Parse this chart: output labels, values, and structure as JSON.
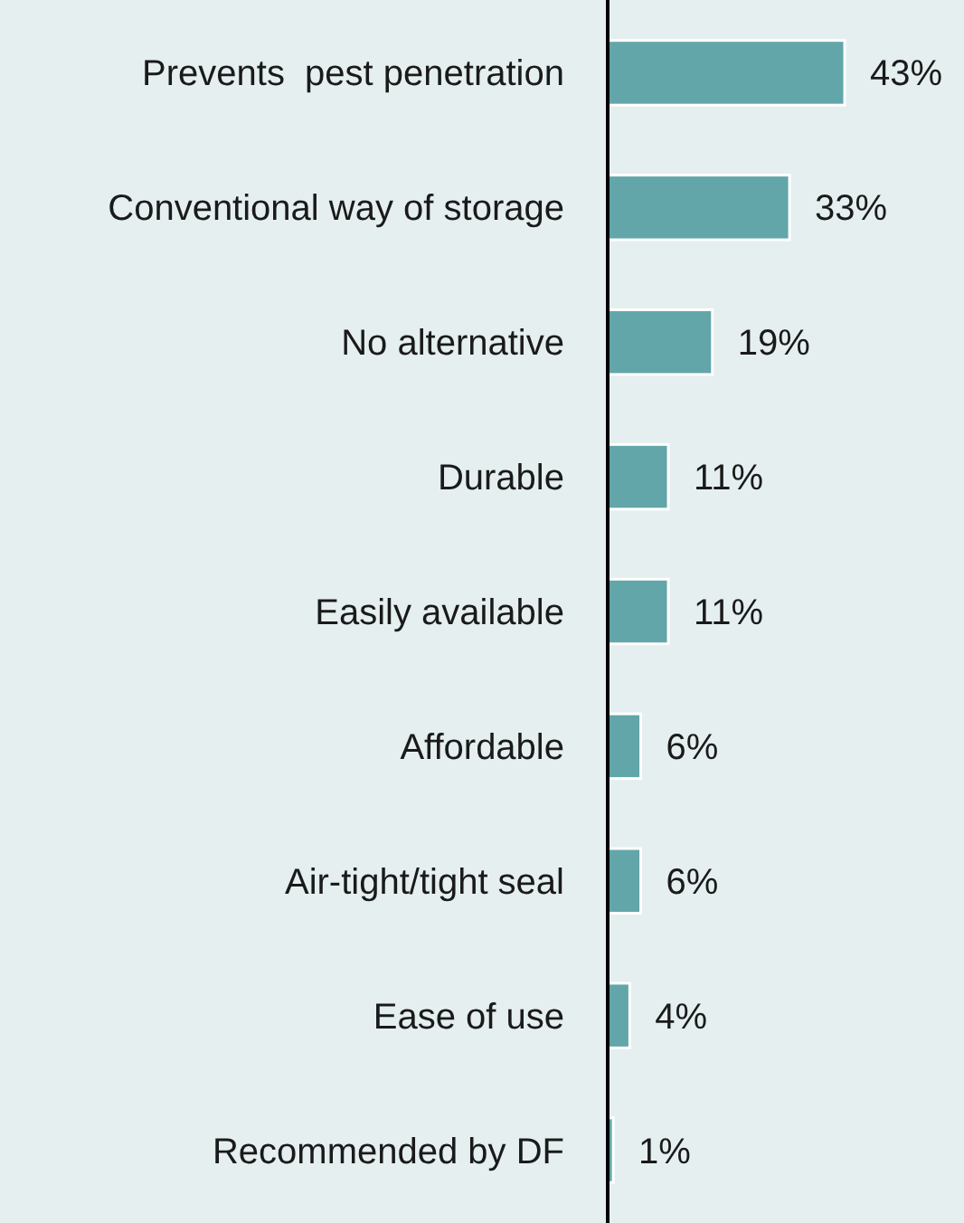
{
  "chart_data": {
    "type": "bar",
    "orientation": "horizontal",
    "categories": [
      "Prevents  pest penetration",
      "Conventional way of storage",
      "No alternative",
      "Durable",
      "Easily available",
      "Affordable",
      "Air-tight/tight seal",
      "Ease of use",
      "Recommended by DF"
    ],
    "values": [
      43,
      33,
      19,
      11,
      11,
      6,
      6,
      4,
      1
    ],
    "value_labels": [
      "43%",
      "33%",
      "19%",
      "11%",
      "11%",
      "6%",
      "6%",
      "4%",
      "1%"
    ],
    "color": "#62a6a9"
  }
}
